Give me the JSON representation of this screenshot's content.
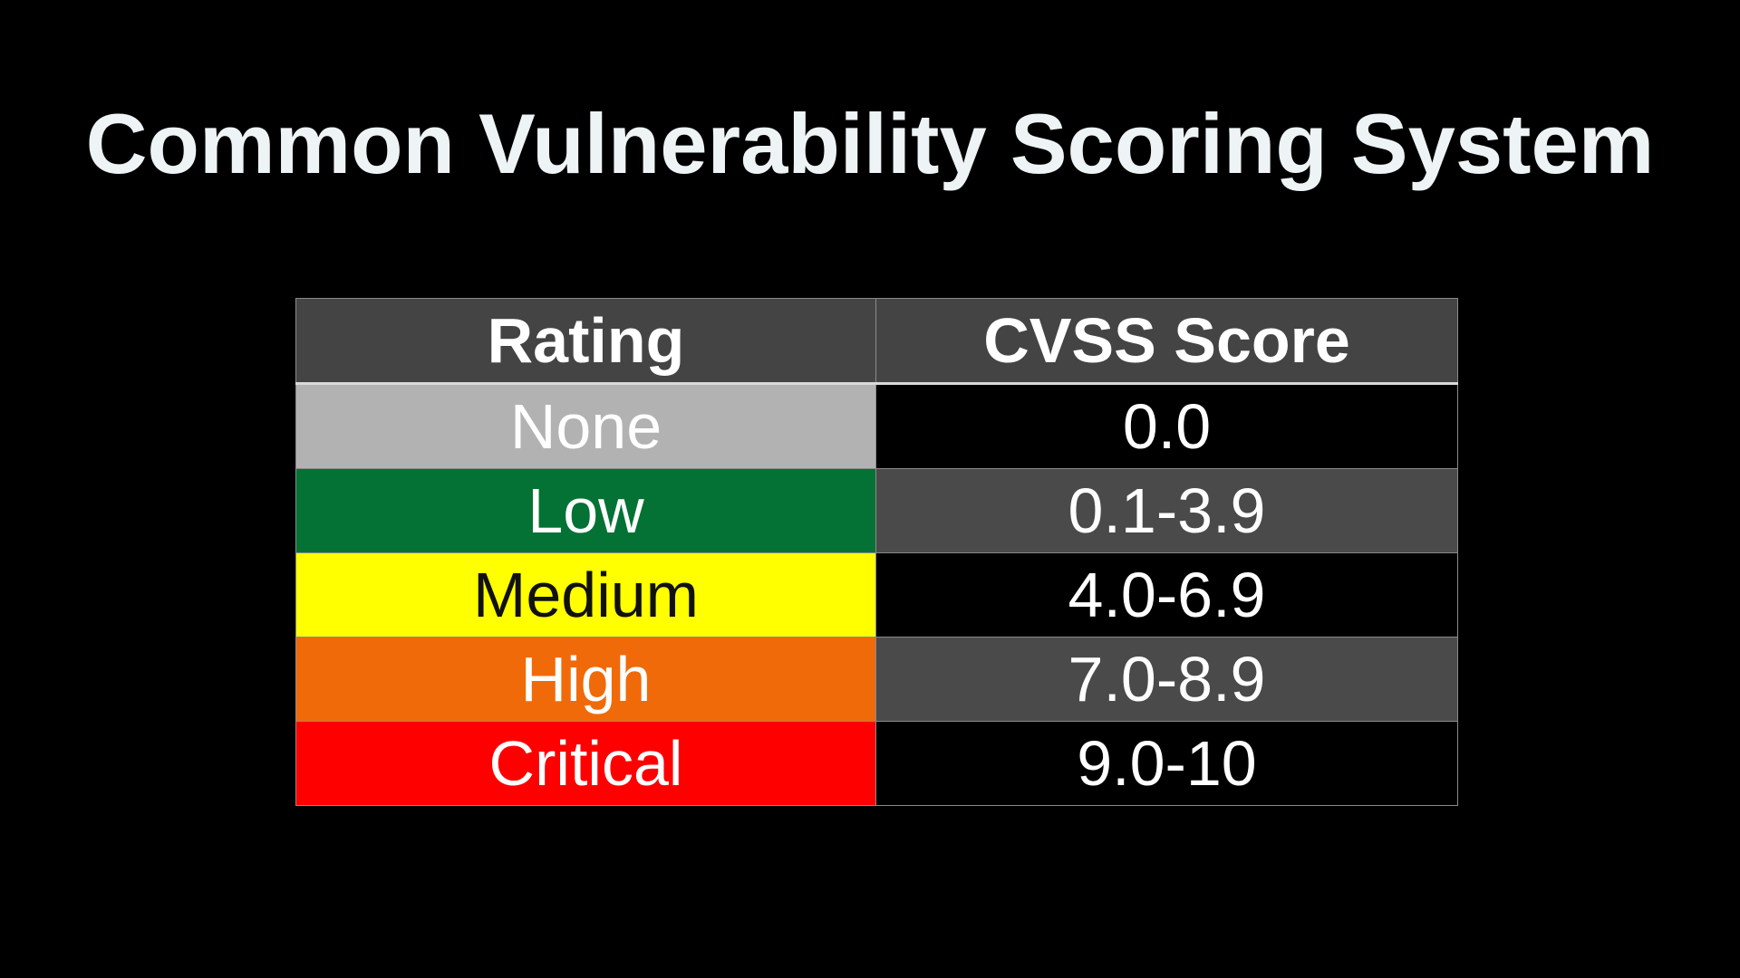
{
  "slide": {
    "title": "Common Vulnerability Scoring System"
  },
  "table": {
    "headers": {
      "rating": "Rating",
      "score": "CVSS Score"
    },
    "rows": [
      {
        "rating": "None",
        "score": "0.0",
        "color": "#B2B2B2",
        "text_color": "#FFFFFF"
      },
      {
        "rating": "Low",
        "score": "0.1-3.9",
        "color": "#037234",
        "text_color": "#FFFFFF"
      },
      {
        "rating": "Medium",
        "score": "4.0-6.9",
        "color": "#FFFF00",
        "text_color": "#111111"
      },
      {
        "rating": "High",
        "score": "7.0-8.9",
        "color": "#F06A0A",
        "text_color": "#FFFFFF"
      },
      {
        "rating": "Critical",
        "score": "9.0-10",
        "color": "#FF0000",
        "text_color": "#FFFFFF"
      }
    ]
  }
}
